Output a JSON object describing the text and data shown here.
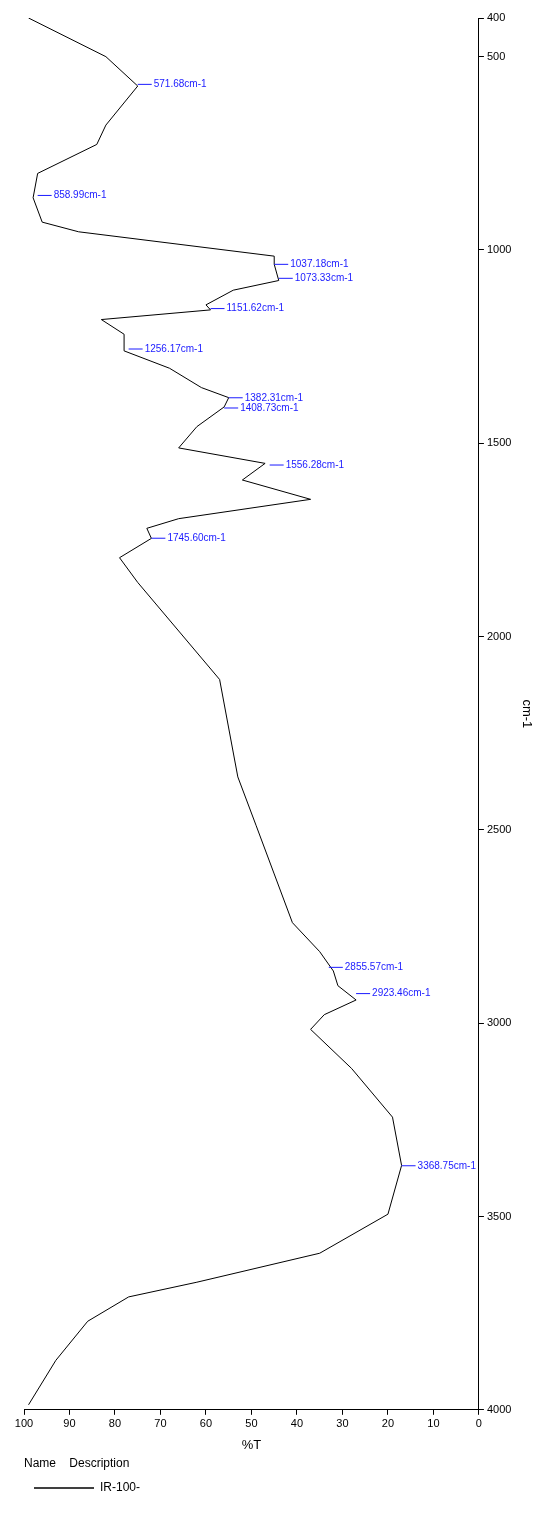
{
  "chart_data": {
    "type": "line",
    "xlabel": "%T",
    "ylabel": "cm-1",
    "legend": "bottom left",
    "legend_title": "Name    Description",
    "xlim": [
      100,
      0
    ],
    "xticks": [
      100,
      90,
      80,
      70,
      60,
      50,
      40,
      30,
      20,
      10,
      0
    ],
    "ylim": [
      4000,
      400
    ],
    "yticks": [
      4000,
      3500,
      3000,
      2500,
      2000,
      1500,
      1000,
      500,
      400
    ],
    "grid": false,
    "marker": "none",
    "line_style": "solid",
    "series": [
      {
        "name": "IR-100-",
        "color": "#000000",
        "x": [
          99,
          93,
          86,
          77,
          62,
          35,
          20,
          17,
          19,
          28,
          37,
          34,
          27,
          31,
          32,
          35,
          41,
          45,
          49,
          53,
          57,
          75,
          79,
          72,
          73,
          66,
          37,
          52,
          47,
          66,
          62,
          56,
          55,
          61,
          68,
          78,
          78,
          83,
          59,
          60,
          54,
          44,
          45,
          45,
          88,
          96,
          98,
          97,
          84,
          82,
          75,
          82,
          99
        ],
        "values": [
          3987,
          3872,
          3771,
          3708,
          3670,
          3595,
          3494,
          3368,
          3243,
          3117,
          3016,
          2978,
          2940,
          2903,
          2865,
          2815,
          2740,
          2614,
          2488,
          2363,
          2111,
          1860,
          1796,
          1746,
          1720,
          1695,
          1645,
          1595,
          1552,
          1512,
          1457,
          1406,
          1382,
          1356,
          1306,
          1261,
          1218,
          1180,
          1155,
          1142,
          1104,
          1079,
          1037,
          1016,
          953,
          928,
          865,
          802,
          727,
          677,
          576,
          500,
          400
        ]
      }
    ],
    "annotations": [
      {
        "text": "3368.75cm-1",
        "x": 17,
        "y": 3368.75
      },
      {
        "text": "2923.46cm-1",
        "x": 27,
        "y": 2923.46
      },
      {
        "text": "2855.57cm-1",
        "x": 33,
        "y": 2855.57
      },
      {
        "text": "1745.60cm-1",
        "x": 72,
        "y": 1745.6
      },
      {
        "text": "1556.28cm-1",
        "x": 46,
        "y": 1556.28
      },
      {
        "text": "1408.73cm-1",
        "x": 56,
        "y": 1408.73
      },
      {
        "text": "1382.31cm-1",
        "x": 55,
        "y": 1382.31
      },
      {
        "text": "1256.17cm-1",
        "x": 77,
        "y": 1256.17
      },
      {
        "text": "1151.62cm-1",
        "x": 59,
        "y": 1151.62
      },
      {
        "text": "1073.33cm-1",
        "x": 44,
        "y": 1073.33
      },
      {
        "text": "1037.18cm-1",
        "x": 45,
        "y": 1037.18
      },
      {
        "text": "858.99cm-1",
        "x": 97,
        "y": 858.99
      },
      {
        "text": "571.68cm-1",
        "x": 75,
        "y": 571.68
      }
    ]
  }
}
